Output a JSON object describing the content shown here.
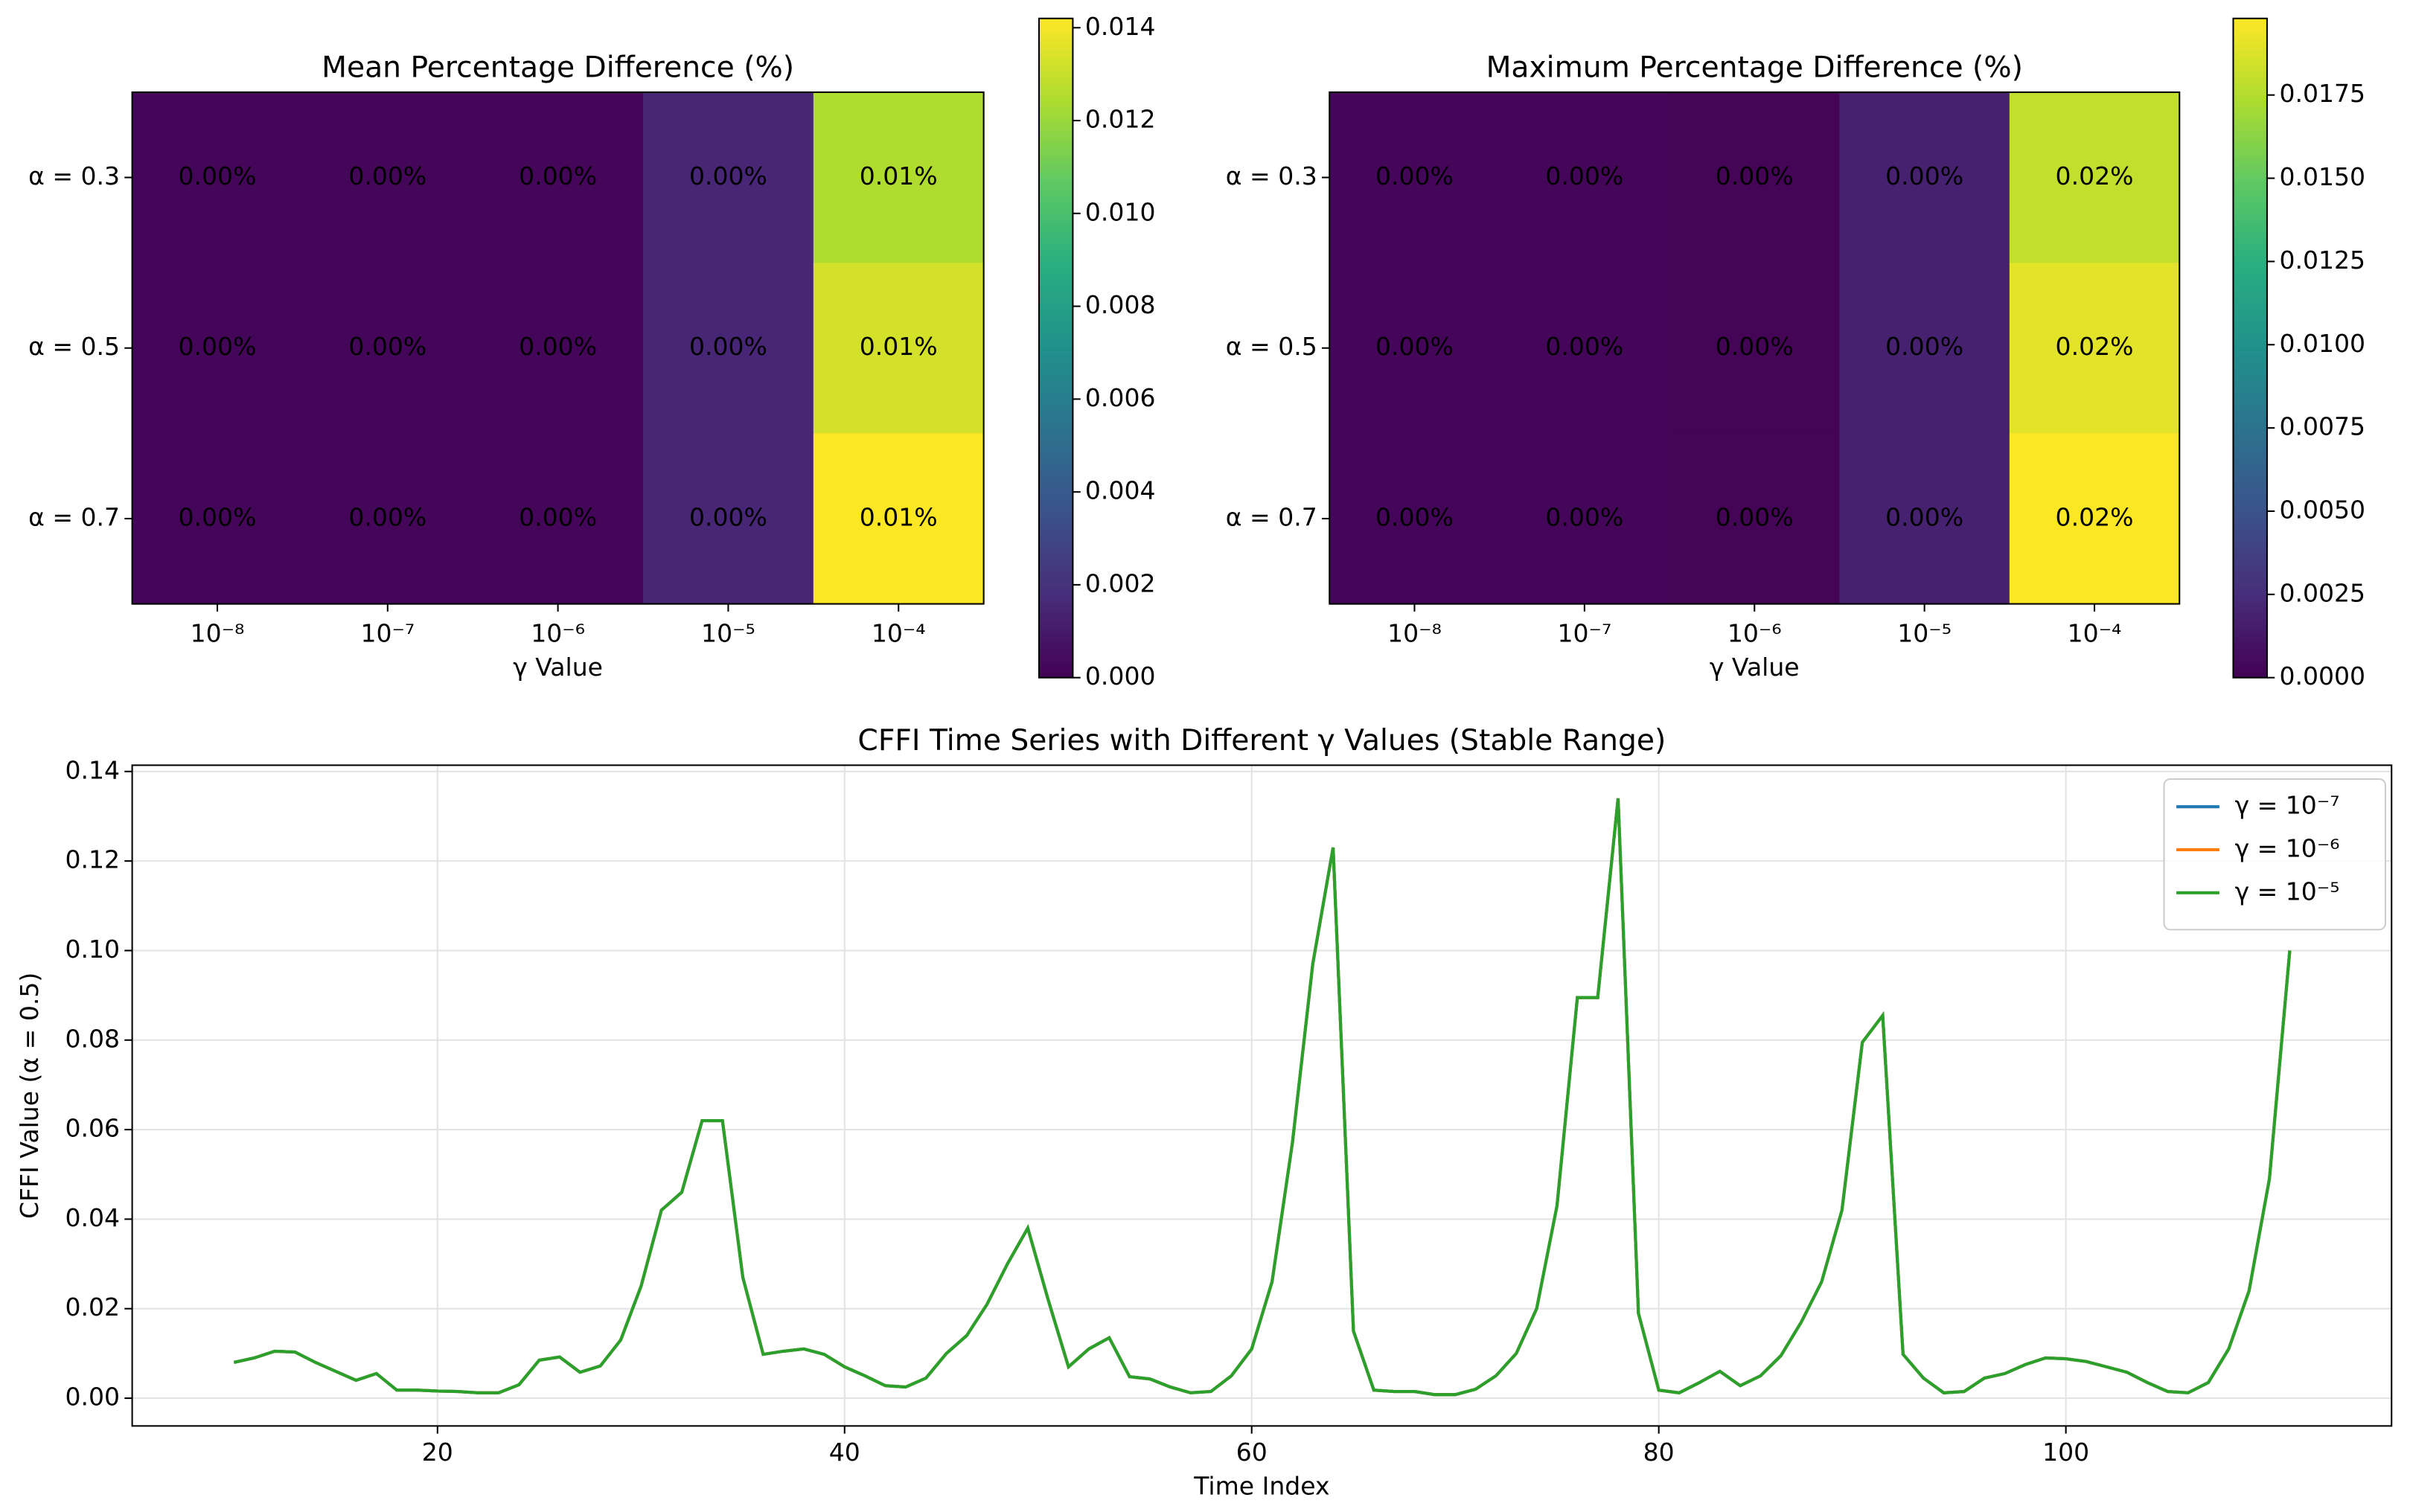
{
  "chart_data": [
    {
      "type": "heatmap",
      "title": "Mean Percentage Difference (%)",
      "xlabel": "γ Value",
      "categories": [
        "10⁻⁸",
        "10⁻⁷",
        "10⁻⁶",
        "10⁻⁵",
        "10⁻⁴"
      ],
      "rows": [
        "α = 0.3",
        "α = 0.5",
        "α = 0.7"
      ],
      "values": [
        [
          0.0002,
          0.0002,
          0.0002,
          0.0015,
          0.0125
        ],
        [
          0.0002,
          0.0002,
          0.0002,
          0.0015,
          0.0133
        ],
        [
          0.0002,
          0.0002,
          0.0002,
          0.0015,
          0.0142
        ]
      ],
      "value_labels": [
        [
          "0.00%",
          "0.00%",
          "0.00%",
          "0.00%",
          "0.01%"
        ],
        [
          "0.00%",
          "0.00%",
          "0.00%",
          "0.00%",
          "0.01%"
        ],
        [
          "0.00%",
          "0.00%",
          "0.00%",
          "0.00%",
          "0.01%"
        ]
      ],
      "colormap": "viridis",
      "clim": [
        0,
        0.0142
      ],
      "cticks": [
        {
          "value": 0,
          "label": "0.000"
        },
        {
          "value": 0.002,
          "label": "0.002"
        },
        {
          "value": 0.004,
          "label": "0.004"
        },
        {
          "value": 0.006,
          "label": "0.006"
        },
        {
          "value": 0.008,
          "label": "0.008"
        },
        {
          "value": 0.01,
          "label": "0.010"
        },
        {
          "value": 0.012,
          "label": "0.012"
        },
        {
          "value": 0.014,
          "label": "0.014"
        }
      ]
    },
    {
      "type": "heatmap",
      "title": "Maximum Percentage Difference (%)",
      "xlabel": "γ Value",
      "categories": [
        "10⁻⁸",
        "10⁻⁷",
        "10⁻⁶",
        "10⁻⁵",
        "10⁻⁴"
      ],
      "rows": [
        "α = 0.3",
        "α = 0.5",
        "α = 0.7"
      ],
      "values": [
        [
          0.0003,
          0.0003,
          0.0002,
          0.0018,
          0.018
        ],
        [
          0.0003,
          0.0003,
          0.0002,
          0.0018,
          0.019
        ],
        [
          0.0003,
          0.0003,
          0.0002,
          0.0018,
          0.0198
        ]
      ],
      "value_labels": [
        [
          "0.00%",
          "0.00%",
          "0.00%",
          "0.00%",
          "0.02%"
        ],
        [
          "0.00%",
          "0.00%",
          "0.00%",
          "0.00%",
          "0.02%"
        ],
        [
          "0.00%",
          "0.00%",
          "0.00%",
          "0.00%",
          "0.02%"
        ]
      ],
      "colormap": "viridis",
      "clim": [
        0,
        0.0198
      ],
      "cticks": [
        {
          "value": 0,
          "label": "0.0000"
        },
        0.0025,
        {
          "value": 0.005,
          "label": "0.0050"
        },
        0.0075,
        {
          "value": 0.01,
          "label": "0.0100"
        },
        0.0125,
        {
          "value": 0.015,
          "label": "0.0150"
        },
        0.0175
      ]
    },
    {
      "type": "line",
      "title": "CFFI Time Series with Different γ Values (Stable Range)",
      "xlabel": "Time Index",
      "ylabel": "CFFI Value (α = 0.5)",
      "x": [
        10,
        11,
        12,
        13,
        14,
        15,
        16,
        17,
        18,
        19,
        20,
        21,
        22,
        23,
        24,
        25,
        26,
        27,
        28,
        29,
        30,
        31,
        32,
        33,
        34,
        35,
        36,
        37,
        38,
        39,
        40,
        41,
        42,
        43,
        44,
        45,
        46,
        47,
        48,
        49,
        50,
        51,
        52,
        53,
        54,
        55,
        56,
        57,
        58,
        59,
        60,
        61,
        62,
        63,
        64,
        65,
        66,
        67,
        68,
        69,
        70,
        71,
        72,
        73,
        74,
        75,
        76,
        77,
        78,
        79,
        80,
        81,
        82,
        83,
        84,
        85,
        86,
        87,
        88,
        89,
        90,
        91,
        92,
        93,
        94,
        95,
        96,
        97,
        98,
        99,
        100,
        101,
        102,
        103,
        104,
        105,
        106,
        107,
        108,
        109,
        110,
        111
      ],
      "series": [
        {
          "name": "γ = 10⁻⁷",
          "color": "#1f77b4",
          "values": [
            0.008,
            0.009,
            0.0105,
            0.0103,
            0.008,
            0.006,
            0.004,
            0.0055,
            0.0018,
            0.0018,
            0.0016,
            0.0015,
            0.0012,
            0.0012,
            0.003,
            0.0085,
            0.0092,
            0.0058,
            0.0072,
            0.013,
            0.025,
            0.042,
            0.046,
            0.062,
            0.062,
            0.027,
            0.0098,
            0.0105,
            0.011,
            0.0098,
            0.007,
            0.005,
            0.0028,
            0.0025,
            0.0045,
            0.01,
            0.014,
            0.021,
            0.03,
            0.038,
            0.022,
            0.007,
            0.011,
            0.0135,
            0.0048,
            0.0043,
            0.0025,
            0.0012,
            0.0015,
            0.005,
            0.011,
            0.026,
            0.057,
            0.097,
            0.123,
            0.015,
            0.0018,
            0.0015,
            0.0015,
            0.0008,
            0.0008,
            0.002,
            0.005,
            0.01,
            0.02,
            0.043,
            0.0895,
            0.0895,
            0.134,
            0.019,
            0.0018,
            0.0012,
            0.0035,
            0.006,
            0.0028,
            0.005,
            0.0095,
            0.017,
            0.026,
            0.042,
            0.0795,
            0.0855,
            0.0098,
            0.0045,
            0.0012,
            0.0015,
            0.0045,
            0.0055,
            0.0075,
            0.009,
            0.0088,
            0.0082,
            0.007,
            0.0058,
            0.0035,
            0.0015,
            0.0012,
            0.0035,
            0.011,
            0.024,
            0.049,
            0.1
          ]
        },
        {
          "name": "γ = 10⁻⁶",
          "color": "#ff7f0e",
          "values": [
            0.008,
            0.009,
            0.0105,
            0.0103,
            0.008,
            0.006,
            0.004,
            0.0055,
            0.0018,
            0.0018,
            0.0016,
            0.0015,
            0.0012,
            0.0012,
            0.003,
            0.0085,
            0.0092,
            0.0058,
            0.0072,
            0.013,
            0.025,
            0.042,
            0.046,
            0.062,
            0.062,
            0.027,
            0.0098,
            0.0105,
            0.011,
            0.0098,
            0.007,
            0.005,
            0.0028,
            0.0025,
            0.0045,
            0.01,
            0.014,
            0.021,
            0.03,
            0.038,
            0.022,
            0.007,
            0.011,
            0.0135,
            0.0048,
            0.0043,
            0.0025,
            0.0012,
            0.0015,
            0.005,
            0.011,
            0.026,
            0.057,
            0.097,
            0.123,
            0.015,
            0.0018,
            0.0015,
            0.0015,
            0.0008,
            0.0008,
            0.002,
            0.005,
            0.01,
            0.02,
            0.043,
            0.0895,
            0.0895,
            0.134,
            0.019,
            0.0018,
            0.0012,
            0.0035,
            0.006,
            0.0028,
            0.005,
            0.0095,
            0.017,
            0.026,
            0.042,
            0.0795,
            0.0855,
            0.0098,
            0.0045,
            0.0012,
            0.0015,
            0.0045,
            0.0055,
            0.0075,
            0.009,
            0.0088,
            0.0082,
            0.007,
            0.0058,
            0.0035,
            0.0015,
            0.0012,
            0.0035,
            0.011,
            0.024,
            0.049,
            0.1
          ]
        },
        {
          "name": "γ = 10⁻⁵",
          "color": "#2ca02c",
          "values": [
            0.008,
            0.009,
            0.0105,
            0.0103,
            0.008,
            0.006,
            0.004,
            0.0055,
            0.0018,
            0.0018,
            0.0016,
            0.0015,
            0.0012,
            0.0012,
            0.003,
            0.0085,
            0.0092,
            0.0058,
            0.0072,
            0.013,
            0.025,
            0.042,
            0.046,
            0.062,
            0.062,
            0.027,
            0.0098,
            0.0105,
            0.011,
            0.0098,
            0.007,
            0.005,
            0.0028,
            0.0025,
            0.0045,
            0.01,
            0.014,
            0.021,
            0.03,
            0.038,
            0.022,
            0.007,
            0.011,
            0.0135,
            0.0048,
            0.0043,
            0.0025,
            0.0012,
            0.0015,
            0.005,
            0.011,
            0.026,
            0.057,
            0.097,
            0.123,
            0.015,
            0.0018,
            0.0015,
            0.0015,
            0.0008,
            0.0008,
            0.002,
            0.005,
            0.01,
            0.02,
            0.043,
            0.0895,
            0.0895,
            0.134,
            0.019,
            0.0018,
            0.0012,
            0.0035,
            0.006,
            0.0028,
            0.005,
            0.0095,
            0.017,
            0.026,
            0.042,
            0.0795,
            0.0855,
            0.0098,
            0.0045,
            0.0012,
            0.0015,
            0.0045,
            0.0055,
            0.0075,
            0.009,
            0.0088,
            0.0082,
            0.007,
            0.0058,
            0.0035,
            0.0015,
            0.0012,
            0.0035,
            0.011,
            0.024,
            0.049,
            0.1
          ]
        }
      ],
      "xlim": [
        5,
        116
      ],
      "ylim": [
        -0.0062,
        0.1414
      ],
      "xticks": [
        20,
        40,
        60,
        80,
        100
      ],
      "yticks": [
        {
          "value": 0,
          "label": "0.00"
        },
        {
          "value": 0.02,
          "label": "0.02"
        },
        {
          "value": 0.04,
          "label": "0.04"
        },
        {
          "value": 0.06,
          "label": "0.06"
        },
        {
          "value": 0.08,
          "label": "0.08"
        },
        {
          "value": 0.1,
          "label": "0.10"
        },
        {
          "value": 0.12,
          "label": "0.12"
        },
        {
          "value": 0.14,
          "label": "0.14"
        }
      ],
      "grid": true,
      "legend": "upper right"
    }
  ]
}
